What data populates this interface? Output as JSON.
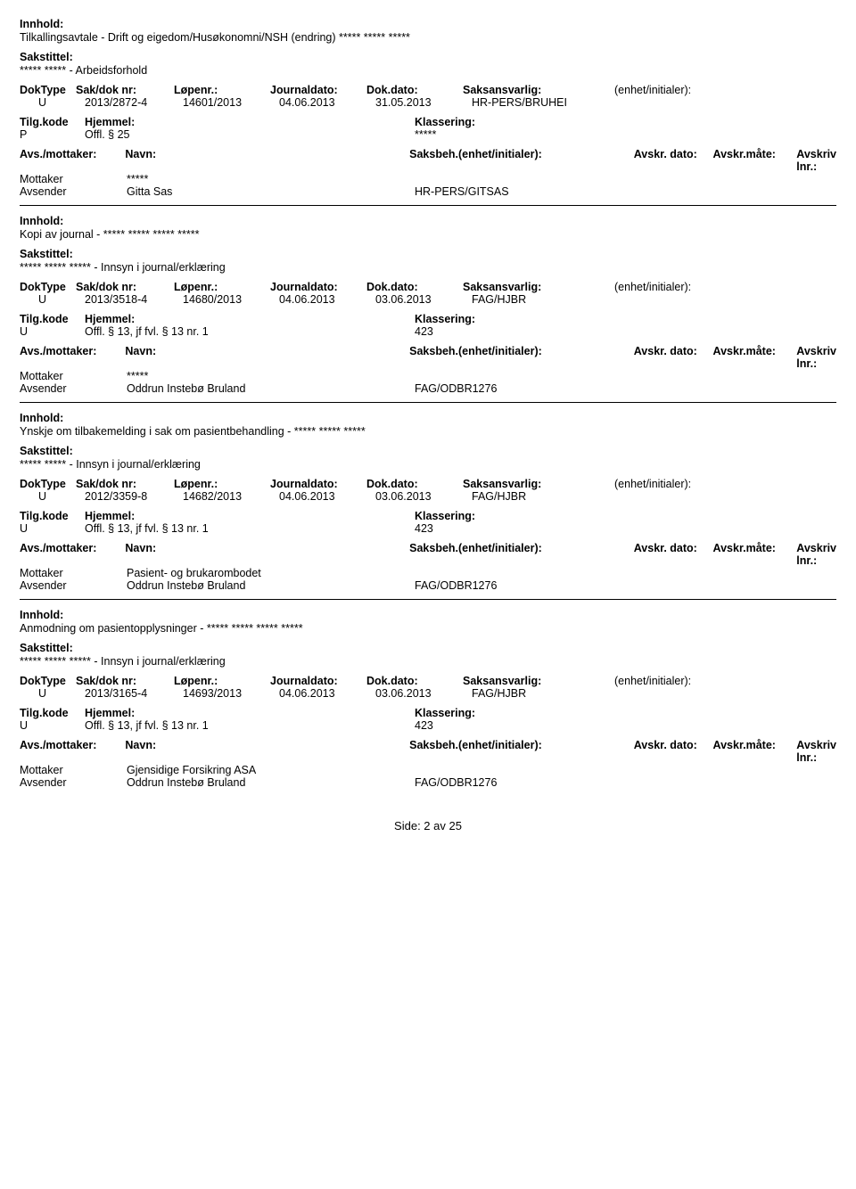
{
  "labels": {
    "innhold": "Innhold:",
    "sakstittel": "Sakstittel:",
    "doktype": "DokType",
    "sakdoknr": "Sak/dok nr:",
    "lopenr": "Løpenr.:",
    "journaldato": "Journaldato:",
    "dokdato": "Dok.dato:",
    "saksansvarlig": "Saksansvarlig:",
    "enhet": "(enhet/initialer):",
    "tilgkode": "Tilg.kode",
    "hjemmel": "Hjemmel:",
    "klassering": "Klassering:",
    "avsmottaker": "Avs./mottaker:",
    "navn": "Navn:",
    "saksbeh": "Saksbeh.(enhet/initialer):",
    "avskrdato": "Avskr. dato:",
    "avskrmate": "Avskr.måte:",
    "avskrivlnr": "Avskriv lnr.:",
    "mottaker": "Mottaker",
    "avsender": "Avsender"
  },
  "records": [
    {
      "innhold": "Tilkallingsavtale - Drift og eigedom/Husøkonomni/NSH (endring) ***** ***** *****",
      "sakstittel": "***** ***** - Arbeidsforhold",
      "doktype": "U",
      "sakdoknr": "2013/2872-4",
      "lopenr": "14601/2013",
      "journaldato": "04.06.2013",
      "dokdato": "31.05.2013",
      "saksansvarlig": "HR-PERS/BRUHEI",
      "tilgkode": "P",
      "hjemmel": "Offl. § 25",
      "klassering": "*****",
      "parts": [
        {
          "role": "Mottaker",
          "navn": "*****",
          "saksbeh": ""
        },
        {
          "role": "Avsender",
          "navn": "Gitta Sas",
          "saksbeh": "HR-PERS/GITSAS"
        }
      ]
    },
    {
      "innhold": "Kopi av journal - ***** ***** ***** *****",
      "sakstittel": "***** ***** ***** - Innsyn i journal/erklæring",
      "doktype": "U",
      "sakdoknr": "2013/3518-4",
      "lopenr": "14680/2013",
      "journaldato": "04.06.2013",
      "dokdato": "03.06.2013",
      "saksansvarlig": "FAG/HJBR",
      "tilgkode": "U",
      "hjemmel": "Offl. § 13, jf fvl. § 13 nr. 1",
      "klassering": "423",
      "parts": [
        {
          "role": "Mottaker",
          "navn": "*****",
          "saksbeh": ""
        },
        {
          "role": "Avsender",
          "navn": "Oddrun Instebø Bruland",
          "saksbeh": "FAG/ODBR1276"
        }
      ]
    },
    {
      "innhold": "Ynskje om tilbakemelding i sak om pasientbehandling - ***** ***** *****",
      "sakstittel": "***** ***** - Innsyn i journal/erklæring",
      "doktype": "U",
      "sakdoknr": "2012/3359-8",
      "lopenr": "14682/2013",
      "journaldato": "04.06.2013",
      "dokdato": "03.06.2013",
      "saksansvarlig": "FAG/HJBR",
      "tilgkode": "U",
      "hjemmel": "Offl. § 13, jf fvl. § 13 nr. 1",
      "klassering": "423",
      "parts": [
        {
          "role": "Mottaker",
          "navn": "Pasient- og brukarombodet",
          "saksbeh": ""
        },
        {
          "role": "Avsender",
          "navn": "Oddrun Instebø Bruland",
          "saksbeh": "FAG/ODBR1276"
        }
      ]
    },
    {
      "innhold": "Anmodning om pasientopplysninger - ***** ***** ***** *****",
      "sakstittel": "***** ***** ***** - Innsyn i journal/erklæring",
      "doktype": "U",
      "sakdoknr": "2013/3165-4",
      "lopenr": "14693/2013",
      "journaldato": "04.06.2013",
      "dokdato": "03.06.2013",
      "saksansvarlig": "FAG/HJBR",
      "tilgkode": "U",
      "hjemmel": "Offl. § 13, jf fvl. § 13 nr. 1",
      "klassering": "423",
      "parts": [
        {
          "role": "Mottaker",
          "navn": "Gjensidige Forsikring ASA",
          "saksbeh": ""
        },
        {
          "role": "Avsender",
          "navn": "Oddrun Instebø Bruland",
          "saksbeh": "FAG/ODBR1276"
        }
      ]
    }
  ],
  "footer": "Side: 2 av 25"
}
